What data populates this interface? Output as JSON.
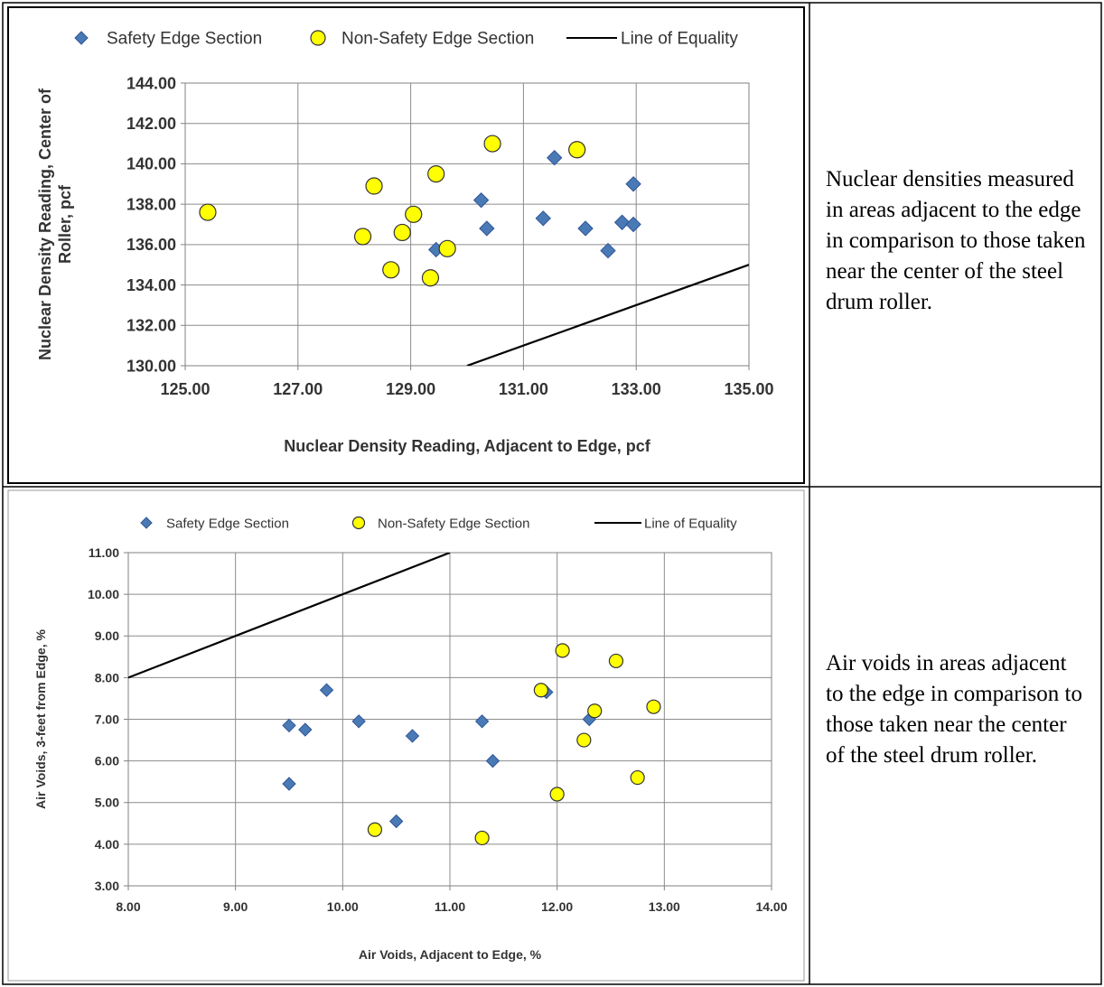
{
  "charts": [
    {
      "caption": "Nuclear densities measured in areas adjacent to the edge in comparison to those taken near the center of the steel drum roller.",
      "chart_data": {
        "type": "scatter",
        "title": "",
        "xlabel": "Nuclear Density Reading, Adjacent to Edge, pcf",
        "ylabel_lines": [
          "Nuclear Density Reading, Center of",
          "Roller, pcf"
        ],
        "xlim": [
          125,
          135
        ],
        "ylim": [
          130,
          144
        ],
        "x_ticks": [
          "125.00",
          "127.00",
          "129.00",
          "131.00",
          "133.00",
          "135.00"
        ],
        "y_ticks": [
          "130.00",
          "132.00",
          "134.00",
          "136.00",
          "138.00",
          "140.00",
          "142.00",
          "144.00"
        ],
        "grid": true,
        "legend_position": "top",
        "series": [
          {
            "name": "Safety Edge Section",
            "marker": "diamond",
            "color": "#4a7ab5",
            "points": [
              [
                129.45,
                135.75
              ],
              [
                130.25,
                138.2
              ],
              [
                130.35,
                136.8
              ],
              [
                131.35,
                137.3
              ],
              [
                131.55,
                140.3
              ],
              [
                132.1,
                136.8
              ],
              [
                132.5,
                135.7
              ],
              [
                132.75,
                137.1
              ],
              [
                132.95,
                139.0
              ],
              [
                132.95,
                137.0
              ]
            ]
          },
          {
            "name": "Non-Safety Edge Section",
            "marker": "circle",
            "color": "#ffff00",
            "points": [
              [
                125.4,
                137.6
              ],
              [
                128.15,
                136.4
              ],
              [
                128.35,
                138.9
              ],
              [
                128.65,
                134.75
              ],
              [
                128.85,
                136.6
              ],
              [
                129.05,
                137.5
              ],
              [
                129.35,
                134.35
              ],
              [
                129.45,
                139.5
              ],
              [
                129.65,
                135.8
              ],
              [
                130.45,
                141.0
              ],
              [
                131.95,
                140.7
              ]
            ]
          },
          {
            "name": "Line of Equality",
            "marker": "line",
            "color": "#000000",
            "points": [
              [
                130,
                130
              ],
              [
                135,
                135
              ]
            ]
          }
        ]
      }
    },
    {
      "caption": "Air voids in areas adjacent to the edge in comparison to those taken near the center of the steel drum roller.",
      "chart_data": {
        "type": "scatter",
        "title": "",
        "xlabel": "Air Voids, Adjacent to Edge, %",
        "ylabel_lines": [
          "Air Voids, 3-feet from Edge, %"
        ],
        "xlim": [
          8,
          14
        ],
        "ylim": [
          3,
          11
        ],
        "x_ticks": [
          "8.00",
          "9.00",
          "10.00",
          "11.00",
          "12.00",
          "13.00",
          "14.00"
        ],
        "y_ticks": [
          "3.00",
          "4.00",
          "5.00",
          "6.00",
          "7.00",
          "8.00",
          "9.00",
          "10.00",
          "11.00"
        ],
        "grid": true,
        "legend_position": "top",
        "series": [
          {
            "name": "Safety Edge Section",
            "marker": "diamond",
            "color": "#4a7ab5",
            "points": [
              [
                9.5,
                6.85
              ],
              [
                9.5,
                5.45
              ],
              [
                9.65,
                6.75
              ],
              [
                9.85,
                7.7
              ],
              [
                10.15,
                6.95
              ],
              [
                10.5,
                4.55
              ],
              [
                10.65,
                6.6
              ],
              [
                11.3,
                6.95
              ],
              [
                11.4,
                6.0
              ],
              [
                11.9,
                7.65
              ],
              [
                12.3,
                7.0
              ]
            ]
          },
          {
            "name": "Non-Safety Edge Section",
            "marker": "circle",
            "color": "#ffff00",
            "points": [
              [
                10.3,
                4.35
              ],
              [
                11.3,
                4.15
              ],
              [
                11.85,
                7.7
              ],
              [
                12.0,
                5.2
              ],
              [
                12.05,
                8.65
              ],
              [
                12.25,
                6.5
              ],
              [
                12.35,
                7.2
              ],
              [
                12.55,
                8.4
              ],
              [
                12.75,
                5.6
              ],
              [
                12.9,
                7.3
              ]
            ]
          },
          {
            "name": "Line of Equality",
            "marker": "line",
            "color": "#000000",
            "points": [
              [
                8,
                8
              ],
              [
                11,
                11
              ]
            ]
          }
        ]
      }
    }
  ]
}
